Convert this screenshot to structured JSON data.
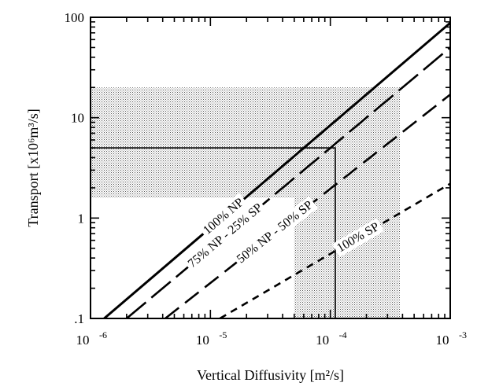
{
  "chart_data": {
    "type": "line",
    "title": "",
    "xlabel": "Vertical Diffusivity [m²/s]",
    "ylabel": "Transport [x10⁶m³/s]",
    "xscale": "log",
    "yscale": "log",
    "xlim": [
      1e-06,
      0.001
    ],
    "ylim": [
      0.1,
      100
    ],
    "grid": false,
    "x_ticks": [
      {
        "base": "10",
        "exp": "-6"
      },
      {
        "base": "10",
        "exp": "-5"
      },
      {
        "base": "10",
        "exp": "-4"
      },
      {
        "base": "10",
        "exp": "-3"
      }
    ],
    "y_ticks": [
      {
        "value": 0.1,
        "label": ".1"
      },
      {
        "value": 1,
        "label": "1"
      },
      {
        "value": 10,
        "label": "10"
      },
      {
        "value": 100,
        "label": "100"
      }
    ],
    "series": [
      {
        "name": "100% NP",
        "style": "solid",
        "x": [
          1.3e-06,
          0.001
        ],
        "y": [
          0.1,
          88
        ]
      },
      {
        "name": "75% NP - 25% SP",
        "style": "long-dash",
        "x": [
          2e-06,
          0.001
        ],
        "y": [
          0.1,
          50
        ]
      },
      {
        "name": "50% NP - 50% SP",
        "style": "dash",
        "x": [
          4.2e-06,
          0.001
        ],
        "y": [
          0.1,
          17
        ]
      },
      {
        "name": "100% SP",
        "style": "short-dash",
        "x": [
          1.2e-05,
          0.001
        ],
        "y": [
          0.1,
          2.2
        ]
      }
    ],
    "shaded_regions": [
      {
        "x": [
          1e-06,
          0.00038
        ],
        "y": [
          1.6,
          20
        ]
      },
      {
        "x": [
          5e-05,
          0.00038
        ],
        "y": [
          0.1,
          20
        ]
      }
    ],
    "reference_lines": [
      {
        "points": [
          [
            1e-06,
            5
          ],
          [
            0.00011,
            5
          ],
          [
            0.00011,
            0.1
          ]
        ]
      }
    ],
    "colors": {
      "shade": "#d2d2d2",
      "line": "#000000"
    }
  }
}
